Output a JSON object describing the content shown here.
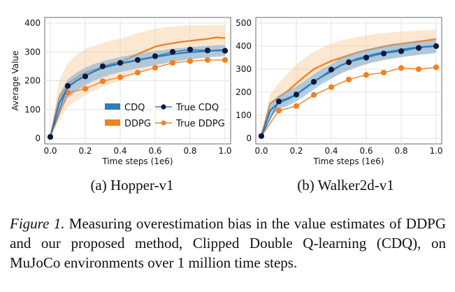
{
  "chart_data": [
    {
      "type": "line",
      "panel_label": "(a) Hopper-v1",
      "xlabel": "Time steps (1e6)",
      "ylabel": "Average Value",
      "xlim": [
        0.0,
        1.0
      ],
      "ylim": [
        0,
        400
      ],
      "xticks": [
        "0.0",
        "0.2",
        "0.4",
        "0.6",
        "0.8",
        "1.0"
      ],
      "yticks": [
        "0",
        "100",
        "200",
        "300",
        "400"
      ],
      "grid": true,
      "legend_position": "lower-right",
      "legend": {
        "cdq": "CDQ",
        "true_cdq": "True CDQ",
        "ddpg": "DDPG",
        "true_ddpg": "True DDPG"
      },
      "series": [
        {
          "name": "CDQ",
          "style": "band",
          "x": [
            0.0,
            0.05,
            0.1,
            0.15,
            0.2,
            0.25,
            0.3,
            0.35,
            0.4,
            0.45,
            0.5,
            0.55,
            0.6,
            0.65,
            0.7,
            0.75,
            0.8,
            0.85,
            0.9,
            0.95,
            1.0
          ],
          "values": [
            5,
            120,
            178,
            200,
            218,
            232,
            245,
            252,
            260,
            265,
            272,
            277,
            283,
            287,
            292,
            296,
            299,
            301,
            303,
            305,
            306
          ],
          "lower": [
            5,
            85,
            140,
            165,
            185,
            200,
            212,
            222,
            230,
            236,
            243,
            248,
            255,
            260,
            266,
            270,
            274,
            277,
            280,
            283,
            285
          ],
          "upper": [
            5,
            150,
            205,
            228,
            245,
            258,
            268,
            275,
            282,
            288,
            294,
            298,
            303,
            307,
            311,
            314,
            317,
            319,
            321,
            323,
            324
          ]
        },
        {
          "name": "True CDQ",
          "style": "markers",
          "x": [
            0.0,
            0.1,
            0.2,
            0.3,
            0.4,
            0.5,
            0.6,
            0.7,
            0.8,
            0.9,
            1.0
          ],
          "values": [
            5,
            182,
            215,
            250,
            262,
            272,
            285,
            300,
            308,
            305,
            304
          ]
        },
        {
          "name": "DDPG",
          "style": "band",
          "x": [
            0.0,
            0.05,
            0.1,
            0.15,
            0.2,
            0.25,
            0.3,
            0.35,
            0.4,
            0.45,
            0.5,
            0.55,
            0.6,
            0.65,
            0.7,
            0.75,
            0.8,
            0.85,
            0.9,
            0.95,
            1.0
          ],
          "values": [
            5,
            140,
            190,
            210,
            228,
            238,
            248,
            260,
            265,
            278,
            292,
            305,
            318,
            325,
            330,
            335,
            338,
            342,
            345,
            350,
            348
          ],
          "lower": [
            5,
            60,
            110,
            130,
            150,
            165,
            178,
            190,
            200,
            212,
            225,
            238,
            250,
            258,
            265,
            270,
            275,
            280,
            284,
            288,
            290
          ],
          "upper": [
            5,
            200,
            260,
            290,
            310,
            320,
            330,
            340,
            345,
            355,
            365,
            372,
            380,
            385,
            388,
            390,
            392,
            392,
            393,
            394,
            392
          ]
        },
        {
          "name": "True DDPG",
          "style": "markers",
          "x": [
            0.0,
            0.1,
            0.2,
            0.3,
            0.4,
            0.5,
            0.6,
            0.7,
            0.8,
            0.9,
            1.0
          ],
          "values": [
            5,
            158,
            172,
            198,
            212,
            228,
            245,
            262,
            268,
            272,
            272
          ]
        }
      ]
    },
    {
      "type": "line",
      "panel_label": "(b) Walker2d-v1",
      "xlabel": "Time steps (1e6)",
      "ylabel": "",
      "xlim": [
        0.0,
        1.0
      ],
      "ylim": [
        0,
        500
      ],
      "xticks": [
        "0.0",
        "0.2",
        "0.4",
        "0.6",
        "0.8",
        "1.0"
      ],
      "yticks": [
        "0",
        "100",
        "200",
        "300",
        "400",
        "500"
      ],
      "grid": true,
      "legend_position": "none",
      "series": [
        {
          "name": "CDQ",
          "style": "band",
          "x": [
            0.0,
            0.05,
            0.1,
            0.15,
            0.2,
            0.25,
            0.3,
            0.35,
            0.4,
            0.45,
            0.5,
            0.55,
            0.6,
            0.65,
            0.7,
            0.75,
            0.8,
            0.85,
            0.9,
            0.95,
            1.0
          ],
          "values": [
            10,
            120,
            155,
            170,
            190,
            218,
            245,
            270,
            290,
            315,
            330,
            345,
            355,
            365,
            372,
            378,
            385,
            390,
            395,
            398,
            400
          ],
          "lower": [
            10,
            90,
            125,
            140,
            160,
            185,
            212,
            238,
            258,
            280,
            296,
            310,
            322,
            332,
            340,
            346,
            352,
            357,
            362,
            366,
            370
          ],
          "upper": [
            10,
            150,
            185,
            205,
            225,
            250,
            278,
            302,
            322,
            346,
            362,
            375,
            385,
            394,
            400,
            406,
            412,
            416,
            420,
            423,
            425
          ]
        },
        {
          "name": "True CDQ",
          "style": "markers",
          "x": [
            0.0,
            0.1,
            0.2,
            0.3,
            0.4,
            0.5,
            0.6,
            0.7,
            0.8,
            0.9,
            1.0
          ],
          "values": [
            10,
            160,
            190,
            245,
            298,
            330,
            350,
            368,
            378,
            392,
            400
          ]
        },
        {
          "name": "DDPG",
          "style": "band",
          "x": [
            0.0,
            0.05,
            0.1,
            0.15,
            0.2,
            0.25,
            0.3,
            0.35,
            0.4,
            0.45,
            0.5,
            0.55,
            0.6,
            0.65,
            0.7,
            0.75,
            0.8,
            0.85,
            0.9,
            0.95,
            1.0
          ],
          "values": [
            10,
            150,
            180,
            205,
            238,
            270,
            300,
            318,
            335,
            348,
            360,
            372,
            382,
            390,
            398,
            405,
            410,
            415,
            420,
            425,
            430
          ],
          "lower": [
            10,
            100,
            130,
            150,
            180,
            205,
            230,
            250,
            265,
            280,
            295,
            308,
            320,
            330,
            338,
            345,
            352,
            358,
            362,
            366,
            370
          ],
          "upper": [
            10,
            190,
            240,
            280,
            320,
            350,
            375,
            395,
            410,
            422,
            432,
            440,
            446,
            452,
            456,
            460,
            462,
            465,
            468,
            470,
            472
          ]
        },
        {
          "name": "True DDPG",
          "style": "markers",
          "x": [
            0.0,
            0.1,
            0.2,
            0.3,
            0.4,
            0.5,
            0.6,
            0.7,
            0.8,
            0.9,
            1.0
          ],
          "values": [
            10,
            120,
            140,
            188,
            222,
            255,
            275,
            285,
            305,
            300,
            308
          ]
        }
      ]
    }
  ],
  "caption": {
    "lead": "Figure 1.",
    "text": " Measuring overestimation bias in the value estimates of DDPG and our proposed method, Clipped Double Q-learning (CDQ), on MuJoCo environments over 1 million time steps."
  },
  "colors": {
    "cdq": "#2f7ebc",
    "cdq_band": "#7fb2dc",
    "ddpg": "#f28124",
    "ddpg_band": "#f9c99a",
    "true_cdq_marker": "#0b1a3a",
    "grid": "#e3e3e3"
  }
}
